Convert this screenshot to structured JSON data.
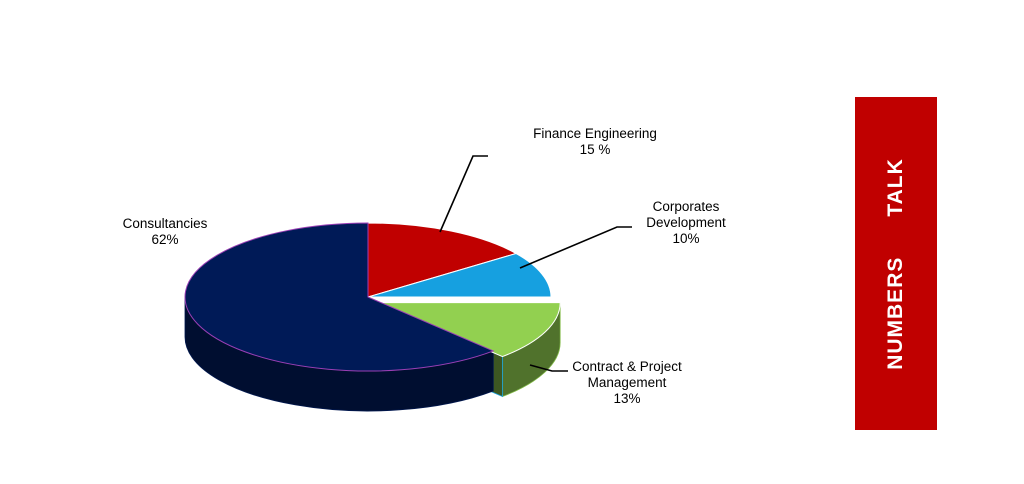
{
  "chart_data": {
    "type": "pie",
    "style": "3d-exploded",
    "slices": [
      {
        "name": "Finance Engineering",
        "value": 15,
        "label_lines": [
          "Finance Engineering",
          "15 %"
        ],
        "color": "#c00000"
      },
      {
        "name": "Corporates Development",
        "value": 10,
        "label_lines": [
          "Corporates",
          "Development",
          "10%"
        ],
        "color": "#16a0e0"
      },
      {
        "name": "Contract & Project Management",
        "value": 13,
        "label_lines": [
          "Contract & Project",
          "Management",
          "13%"
        ],
        "color": "#92d050",
        "exploded": true
      },
      {
        "name": "Consultancies",
        "value": 62,
        "label_lines": [
          "Consultancies",
          "62%"
        ],
        "color": "#001a57"
      }
    ],
    "units": "%"
  },
  "banner": {
    "word1": "NUMBERS",
    "word2": "TALK",
    "color": "#c00000"
  }
}
